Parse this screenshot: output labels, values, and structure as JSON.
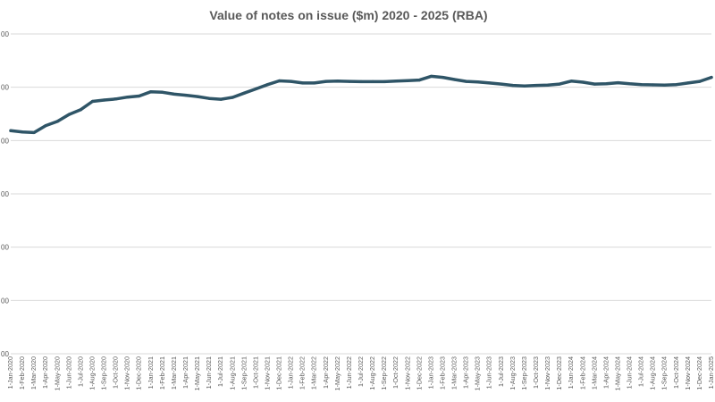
{
  "chart_data": {
    "type": "line",
    "title": "Value of notes on issue ($m) 2020 - 2025 (RBA)",
    "xlabel": "",
    "ylabel": "",
    "ylim": [
      0,
      120000
    ],
    "ytick_labels": [
      "00",
      "00",
      "00",
      "00",
      "00",
      "00",
      "00"
    ],
    "ytick_values": [
      0,
      20000,
      40000,
      60000,
      80000,
      100000,
      120000
    ],
    "grid": true,
    "legend": "none",
    "line_color": "#2F5567",
    "grid_color": "#D9D9D9",
    "x": [
      "1-Jan-2020",
      "1-Feb-2020",
      "1-Mar-2020",
      "1-Apr-2020",
      "1-May-2020",
      "1-Jun-2020",
      "1-Jul-2020",
      "1-Aug-2020",
      "1-Sep-2020",
      "1-Oct-2020",
      "1-Nov-2020",
      "1-Dec-2020",
      "1-Jan-2021",
      "1-Feb-2021",
      "1-Mar-2021",
      "1-Apr-2021",
      "1-May-2021",
      "1-Jun-2021",
      "1-Jul-2021",
      "1-Aug-2021",
      "1-Sep-2021",
      "1-Oct-2021",
      "1-Nov-2021",
      "1-Dec-2021",
      "1-Jan-2022",
      "1-Feb-2022",
      "1-Mar-2022",
      "1-Apr-2022",
      "1-May-2022",
      "1-Jun-2022",
      "1-Jul-2022",
      "1-Aug-2022",
      "1-Sep-2022",
      "1-Oct-2022",
      "1-Nov-2022",
      "1-Dec-2022",
      "1-Jan-2023",
      "1-Feb-2023",
      "1-Mar-2023",
      "1-Apr-2023",
      "1-May-2023",
      "1-Jun-2023",
      "1-Jul-2023",
      "1-Aug-2023",
      "1-Sep-2023",
      "1-Oct-2023",
      "1-Nov-2023",
      "1-Dec-2023",
      "1-Jan-2024",
      "1-Feb-2024",
      "1-Mar-2024",
      "1-Apr-2024",
      "1-May-2024",
      "1-Jun-2024",
      "1-Jul-2024",
      "1-Aug-2024",
      "1-Sep-2024",
      "1-Oct-2024",
      "1-Nov-2024",
      "1-Dec-2024",
      "1-Jan-2025"
    ],
    "series": [
      {
        "name": "Value of notes on issue ($m)",
        "values": [
          83700,
          83200,
          83000,
          85600,
          87200,
          89800,
          91600,
          94700,
          95200,
          95600,
          96300,
          96700,
          98300,
          98100,
          97400,
          97000,
          96500,
          95800,
          95500,
          96200,
          97800,
          99400,
          101000,
          102400,
          102200,
          101600,
          101600,
          102200,
          102300,
          102200,
          102100,
          102100,
          102100,
          102300,
          102500,
          102700,
          104100,
          103700,
          102900,
          102200,
          102000,
          101600,
          101200,
          100700,
          100500,
          100700,
          100800,
          101200,
          102300,
          101900,
          101200,
          101300,
          101700,
          101300,
          101000,
          100900,
          100800,
          101000,
          101600,
          102200,
          103700
        ]
      }
    ]
  }
}
